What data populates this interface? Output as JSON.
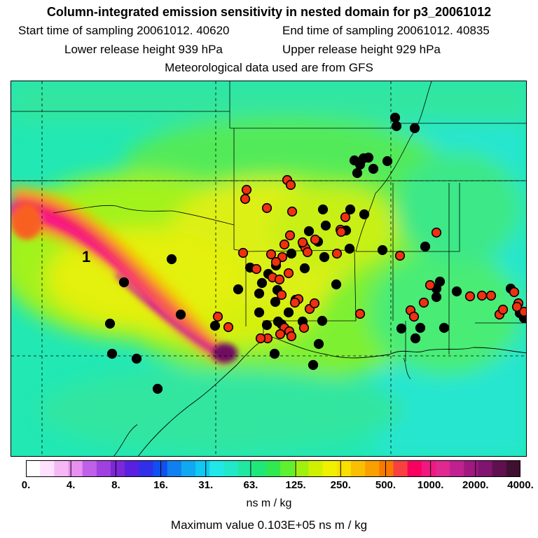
{
  "header": {
    "title": "Column-integrated emission sensitivity in nested domain for p3_20061012",
    "start_label": "Start time of sampling 20061012. 40620",
    "end_label": "End time of sampling 20061012. 40835",
    "lower_label": "Lower release height  939 hPa",
    "upper_label": "Upper release height  929 hPa",
    "met_label": "Meteorological data used are from GFS"
  },
  "map": {
    "marker_label": "1"
  },
  "legend": {
    "colors": [
      "#ffffff",
      "#ffe0ff",
      "#f5b8f5",
      "#e890f0",
      "#c060e8",
      "#a040e0",
      "#7a28d8",
      "#5a20e0",
      "#3030e8",
      "#1050f0",
      "#1080f0",
      "#10a8f0",
      "#10c8f0",
      "#20e8e8",
      "#20e8c8",
      "#20e8a0",
      "#20e878",
      "#30e850",
      "#60f030",
      "#a0f010",
      "#d0f000",
      "#f0f000",
      "#f8e000",
      "#f8c000",
      "#f8a000",
      "#f87800",
      "#f84040",
      "#f80060",
      "#f01880",
      "#e02890",
      "#c02090",
      "#a01880",
      "#801470",
      "#601050",
      "#401030"
    ],
    "tick_labels": [
      "0.",
      "4.",
      "8.",
      "16.",
      "31.",
      "63.",
      "125.",
      "250.",
      "500.",
      "1000.",
      "2000.",
      "4000."
    ],
    "units": "ns m / kg",
    "max_value_text": "Maximum value  0.103E+05 ns m / kg"
  }
}
